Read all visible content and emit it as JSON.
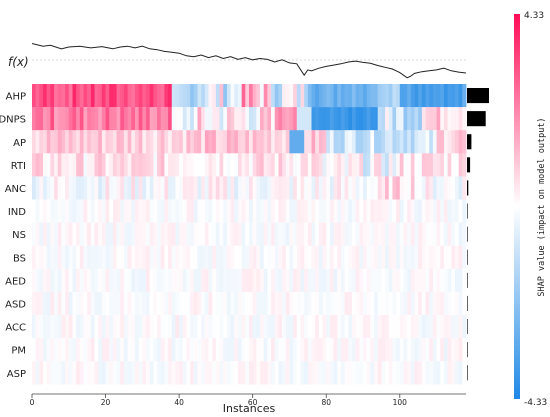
{
  "chart_data": {
    "type": "heatmap",
    "title": "",
    "fx_label": "f(x)",
    "xlabel": "Instances",
    "xlim": [
      0,
      118
    ],
    "x_ticks": [
      0,
      20,
      40,
      60,
      80,
      100
    ],
    "features": [
      "AHP",
      "DNPS",
      "AP",
      "RTI",
      "ANC",
      "IND",
      "NS",
      "BS",
      "AED",
      "ASD",
      "ACC",
      "PM",
      "ASP"
    ],
    "feature_importance": [
      1.0,
      0.85,
      0.2,
      0.14,
      0.06,
      0.02,
      0.015,
      0.012,
      0.01,
      0.008,
      0.006,
      0.005,
      0.004
    ],
    "fx_trend": [
      [
        0,
        0.92
      ],
      [
        3,
        0.86
      ],
      [
        5,
        0.88
      ],
      [
        8,
        0.8
      ],
      [
        10,
        0.84
      ],
      [
        13,
        0.86
      ],
      [
        16,
        0.82
      ],
      [
        19,
        0.85
      ],
      [
        22,
        0.8
      ],
      [
        24,
        0.84
      ],
      [
        26,
        0.86
      ],
      [
        28,
        0.82
      ],
      [
        30,
        0.86
      ],
      [
        32,
        0.8
      ],
      [
        34,
        0.78
      ],
      [
        36,
        0.74
      ],
      [
        38,
        0.72
      ],
      [
        40,
        0.7
      ],
      [
        42,
        0.64
      ],
      [
        44,
        0.62
      ],
      [
        46,
        0.66
      ],
      [
        48,
        0.6
      ],
      [
        50,
        0.64
      ],
      [
        52,
        0.58
      ],
      [
        54,
        0.62
      ],
      [
        56,
        0.56
      ],
      [
        58,
        0.6
      ],
      [
        60,
        0.55
      ],
      [
        62,
        0.58
      ],
      [
        64,
        0.56
      ],
      [
        66,
        0.5
      ],
      [
        68,
        0.55
      ],
      [
        70,
        0.48
      ],
      [
        72,
        0.46
      ],
      [
        74,
        0.2
      ],
      [
        75,
        0.32
      ],
      [
        76,
        0.3
      ],
      [
        78,
        0.36
      ],
      [
        80,
        0.4
      ],
      [
        82,
        0.43
      ],
      [
        84,
        0.46
      ],
      [
        86,
        0.5
      ],
      [
        88,
        0.52
      ],
      [
        90,
        0.49
      ],
      [
        92,
        0.47
      ],
      [
        94,
        0.42
      ],
      [
        96,
        0.38
      ],
      [
        98,
        0.34
      ],
      [
        99,
        0.3
      ],
      [
        100,
        0.26
      ],
      [
        101,
        0.2
      ],
      [
        102,
        0.14
      ],
      [
        103,
        0.18
      ],
      [
        104,
        0.24
      ],
      [
        106,
        0.28
      ],
      [
        108,
        0.3
      ],
      [
        110,
        0.32
      ],
      [
        112,
        0.36
      ],
      [
        114,
        0.3
      ],
      [
        116,
        0.27
      ],
      [
        118,
        0.25
      ]
    ],
    "colorbar": {
      "max_label": "4.33",
      "min_label": "-4.33",
      "label": "SHAP value (impact on model output)",
      "max_color": "#ff0d57",
      "mid_color": "#ffffff",
      "min_color": "#1e88e5"
    }
  }
}
